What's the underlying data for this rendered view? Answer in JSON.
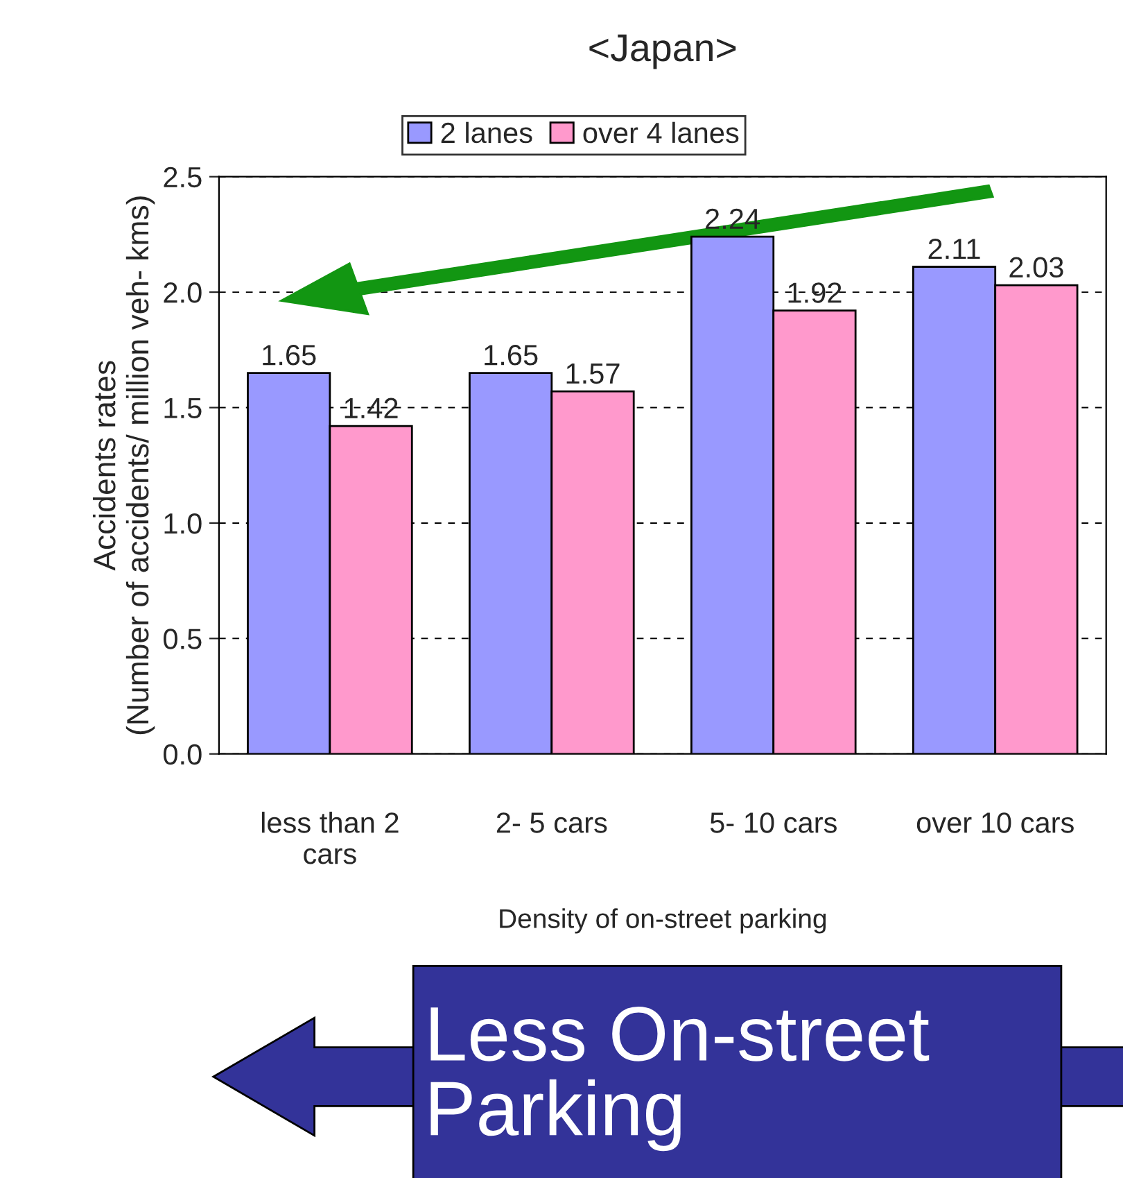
{
  "chart_data": {
    "type": "bar",
    "title": "<Japan>",
    "xlabel": "Density of on-street parking",
    "ylabel": "Accidents rates\n(Number of accidents/ million veh- kms)",
    "categories": [
      "less than 2\ncars",
      "2- 5 cars",
      "5- 10 cars",
      "over 10 cars"
    ],
    "series": [
      {
        "name": "2 lanes",
        "color": "#9999ff",
        "values": [
          1.65,
          1.65,
          2.24,
          2.11
        ]
      },
      {
        "name": "over 4 lanes",
        "color": "#ff99cc",
        "values": [
          1.42,
          1.57,
          1.92,
          2.03
        ]
      }
    ],
    "ylim": [
      0,
      2.5
    ],
    "yticks": [
      {
        "value": 0,
        "label": "0.0"
      },
      {
        "value": 0.5,
        "label": "0.5"
      },
      {
        "value": 1.0,
        "label": "1.0"
      },
      {
        "value": 1.5,
        "label": "1.5"
      },
      {
        "value": 2.0,
        "label": "2.0"
      },
      {
        "value": 2.5,
        "label": "2.5"
      }
    ],
    "grid": "y",
    "legend": "top",
    "data_labels": true,
    "annotations": [
      "Less On-street\nParking"
    ]
  }
}
